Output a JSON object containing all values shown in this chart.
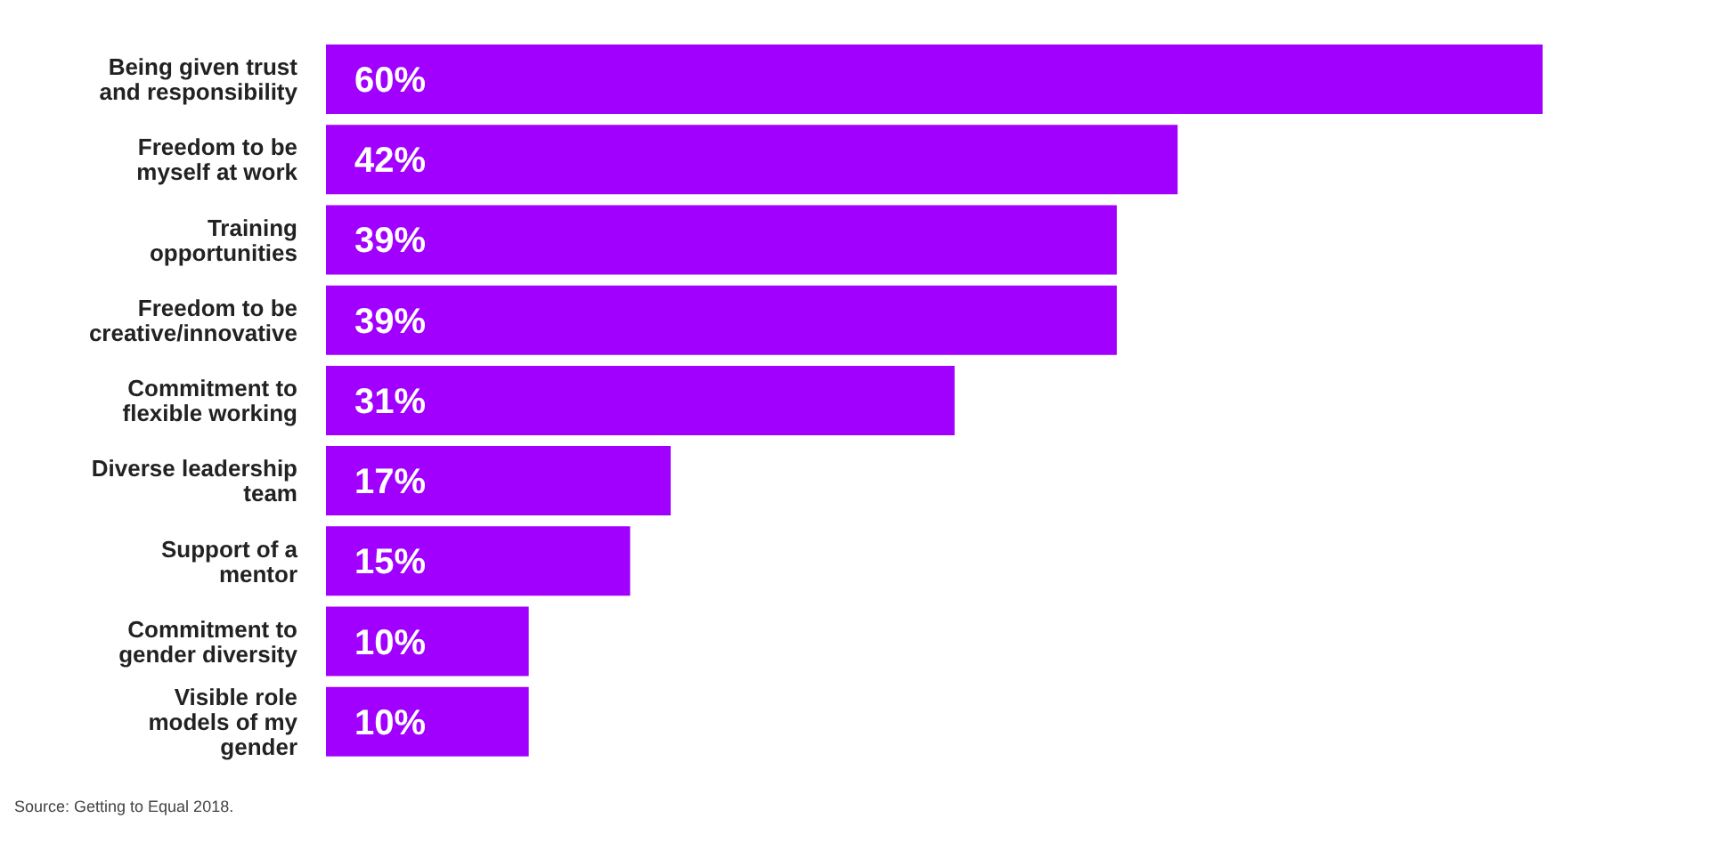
{
  "chart_data": {
    "type": "bar",
    "orientation": "horizontal",
    "categories": [
      "Being given trust and responsibility",
      "Freedom to be myself at work",
      "Training opportunities",
      "Freedom to be creative/innovative",
      "Commitment to flexible working",
      "Diverse leadership team",
      "Support of a mentor",
      "Commitment to gender diversity",
      "Visible role models of my gender"
    ],
    "values": [
      60,
      42,
      39,
      39,
      31,
      17,
      15,
      10,
      10
    ],
    "value_labels": [
      "60%",
      "42%",
      "39%",
      "39%",
      "31%",
      "17%",
      "15%",
      "10%",
      "10%"
    ],
    "color": "#a100ff",
    "annotations": [
      "Source: Getting to Equal 2018."
    ],
    "legend": false,
    "grid": false
  }
}
